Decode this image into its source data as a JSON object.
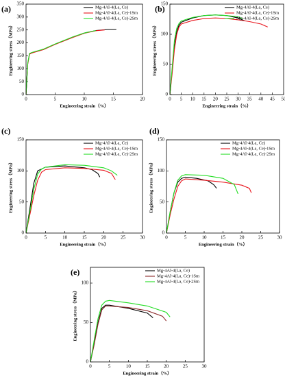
{
  "chart_data": [
    {
      "type": "line",
      "panel_label": "(a)",
      "xlabel": "Engineering strain（%）",
      "ylabel": "Engineering stress（MPa）",
      "xlim": [
        0,
        20
      ],
      "xticks": [
        0,
        5,
        10,
        15,
        20
      ],
      "ylim": [
        0,
        350
      ],
      "yticks": [
        0,
        50,
        100,
        150,
        200,
        250,
        300,
        350
      ],
      "legend": "upper right",
      "series": [
        {
          "name": "Mg-4Al-4(La, Ce)",
          "color": "#000000",
          "x": [
            0,
            0.3,
            0.6,
            1,
            3,
            5,
            8,
            10,
            12,
            14,
            15.5
          ],
          "values": [
            0,
            120,
            158,
            162,
            175,
            195,
            222,
            238,
            248,
            252,
            252
          ]
        },
        {
          "name": "Mg-4Al-4(La, Ce)-1Sm",
          "color": "#e8141c",
          "x": [
            0,
            0.3,
            0.6,
            1,
            3,
            5,
            8,
            10,
            12,
            13.5
          ],
          "values": [
            0,
            118,
            156,
            161,
            174,
            194,
            221,
            237,
            247,
            250
          ]
        },
        {
          "name": "Mg-4Al-4(La, Ce)-2Sm",
          "color": "#22dd22",
          "x": [
            0,
            0.3,
            0.6,
            1,
            3,
            5,
            8,
            10,
            12
          ],
          "values": [
            0,
            122,
            159,
            163,
            176,
            196,
            223,
            238,
            248
          ]
        }
      ]
    },
    {
      "type": "line",
      "panel_label": "(b)",
      "xlabel": "Engineering strain（%）",
      "ylabel": "Engineering stress（MPa）",
      "xlim": [
        0,
        50
      ],
      "xticks": [
        0,
        5,
        10,
        15,
        20,
        25,
        30,
        35,
        40,
        45,
        50
      ],
      "ylim": [
        0,
        150
      ],
      "yticks": [
        0,
        50,
        100,
        150
      ],
      "legend": "upper right",
      "series": [
        {
          "name": "Mg-4Al-4(La, Ce)",
          "color": "#000000",
          "x": [
            0,
            1,
            2,
            3,
            4,
            5,
            10,
            15,
            20,
            25,
            30,
            33
          ],
          "values": [
            0,
            40,
            80,
            105,
            115,
            120,
            127,
            131,
            132,
            131,
            127,
            122
          ]
        },
        {
          "name": "Mg-4Al-4(La, Ce)-1Sm",
          "color": "#e8141c",
          "x": [
            0,
            1,
            2,
            3,
            4,
            5,
            10,
            15,
            20,
            25,
            30,
            35,
            40,
            43
          ],
          "values": [
            0,
            35,
            75,
            100,
            112,
            117,
            123,
            126,
            127,
            126,
            124,
            121,
            117,
            112
          ]
        },
        {
          "name": "Mg-4Al-4(La, Ce)-2Sm",
          "color": "#22dd22",
          "x": [
            0,
            1,
            2,
            3,
            4,
            5,
            10,
            15,
            20,
            25,
            30,
            32
          ],
          "values": [
            0,
            45,
            90,
            110,
            118,
            122,
            128,
            131,
            132,
            131,
            129,
            126
          ]
        }
      ]
    },
    {
      "type": "line",
      "panel_label": "(c)",
      "xlabel": "Engineering strain（%）",
      "ylabel": "Engineering stress（MPa）",
      "xlim": [
        0,
        30
      ],
      "xticks": [
        0,
        5,
        10,
        15,
        20,
        25,
        30
      ],
      "ylim": [
        0,
        150
      ],
      "yticks": [
        0,
        50,
        100,
        150
      ],
      "legend": "upper right",
      "series": [
        {
          "name": "Mg-4Al-4(La, Ce)",
          "color": "#000000",
          "x": [
            0,
            1,
            2,
            3,
            5,
            10,
            15,
            17,
            18.5,
            19
          ],
          "values": [
            0,
            40,
            80,
            100,
            106,
            108,
            105,
            102,
            96,
            90
          ]
        },
        {
          "name": "Mg-4Al-4(La, Ce)-1Sm",
          "color": "#e8141c",
          "x": [
            0,
            1,
            2,
            3,
            4,
            5,
            10,
            15,
            20,
            22,
            23
          ],
          "values": [
            0,
            30,
            60,
            85,
            98,
            102,
            105,
            104,
            101,
            96,
            86
          ]
        },
        {
          "name": "Mg-4Al-4(La, Ce)-2Sm",
          "color": "#22dd22",
          "x": [
            0,
            1,
            2,
            3,
            4,
            5,
            10,
            15,
            20,
            22,
            23.5
          ],
          "values": [
            0,
            35,
            70,
            95,
            103,
            106,
            110,
            109,
            105,
            100,
            93
          ]
        }
      ]
    },
    {
      "type": "line",
      "panel_label": "(d)",
      "xlabel": "Engineering strain（%）",
      "ylabel": "Engineering stress（MPa）",
      "xlim": [
        0,
        30
      ],
      "xticks": [
        0,
        5,
        10,
        15,
        20,
        25,
        30
      ],
      "ylim": [
        0,
        150
      ],
      "yticks": [
        0,
        50,
        100,
        150
      ],
      "legend": "upper right",
      "series": [
        {
          "name": "Mg-4Al-4(La, Ce)",
          "color": "#000000",
          "x": [
            0,
            1,
            2,
            3,
            4,
            5,
            8,
            11,
            12.5,
            13.3
          ],
          "values": [
            0,
            35,
            65,
            82,
            88,
            90,
            88,
            84,
            78,
            72
          ]
        },
        {
          "name": "Mg-4Al-4(La, Ce)-1Sm",
          "color": "#e8141c",
          "x": [
            0,
            1,
            2,
            3,
            4,
            5,
            10,
            15,
            20,
            22,
            22.5
          ],
          "values": [
            0,
            30,
            55,
            75,
            84,
            87,
            85,
            82,
            77,
            72,
            65
          ]
        },
        {
          "name": "Mg-4Al-4(La, Ce)-2Sm",
          "color": "#22dd22",
          "x": [
            0,
            1,
            2,
            3,
            4,
            5,
            10,
            15,
            18,
            19
          ],
          "values": [
            0,
            35,
            65,
            85,
            92,
            94,
            93,
            88,
            78,
            63
          ]
        }
      ]
    },
    {
      "type": "line",
      "panel_label": "(e)",
      "xlabel": "Engineering strain（%）",
      "ylabel": "Engineering stress（MPa）",
      "xlim": [
        0,
        30
      ],
      "xticks": [
        0,
        5,
        10,
        15,
        20,
        25,
        30
      ],
      "ylim": [
        0,
        120
      ],
      "yticks": [
        0,
        50,
        100
      ],
      "legend": "upper right",
      "series": [
        {
          "name": "Mg-4Al-4(La, Ce)",
          "color": "#000000",
          "x": [
            0,
            1,
            2,
            3,
            4,
            5,
            10,
            15,
            16.5
          ],
          "values": [
            0,
            25,
            50,
            68,
            72,
            72,
            68,
            62,
            56
          ]
        },
        {
          "name": "Mg-4Al-4(La, Ce)-1Sm",
          "color": "#8b2a2a",
          "x": [
            0,
            1,
            2,
            3,
            4,
            5,
            10,
            15,
            19,
            20
          ],
          "values": [
            0,
            22,
            48,
            66,
            71,
            71,
            69,
            65,
            58,
            52
          ]
        },
        {
          "name": "Mg-4Al-4(La, Ce)-2Sm",
          "color": "#22dd22",
          "x": [
            0,
            1,
            2,
            3,
            4,
            5,
            10,
            15,
            20,
            21
          ],
          "values": [
            0,
            28,
            55,
            72,
            77,
            78,
            75,
            71,
            63,
            57
          ]
        }
      ]
    }
  ]
}
